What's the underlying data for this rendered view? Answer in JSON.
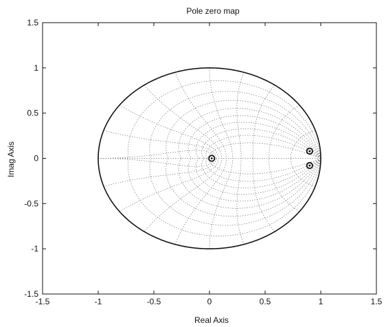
{
  "chart_data": {
    "type": "scatter",
    "title": "Pole zero map",
    "xlabel": "Real Axis",
    "ylabel": "Imag Axis",
    "xlim": [
      -1.5,
      1.5
    ],
    "ylim": [
      -1.5,
      1.5
    ],
    "xticks": [
      -1.5,
      -1,
      -0.5,
      0,
      0.5,
      1,
      1.5
    ],
    "yticks": [
      -1.5,
      -1,
      -0.5,
      0,
      0.5,
      1,
      1.5
    ],
    "xtick_labels": [
      "-1.5",
      "-1",
      "-0.5",
      "0",
      "0.5",
      "1",
      "1.5"
    ],
    "ytick_labels": [
      "-1.5",
      "-1",
      "-0.5",
      "0",
      "0.5",
      "1",
      "1.5"
    ],
    "grid": "z-plane damping/natural-frequency grid (dotted)",
    "unit_circle": true,
    "series": [
      {
        "marker": "o",
        "points": [
          {
            "x": 0.02,
            "y": 0.0
          },
          {
            "x": 0.9,
            "y": 0.08
          },
          {
            "x": 0.9,
            "y": -0.08
          }
        ]
      }
    ]
  }
}
